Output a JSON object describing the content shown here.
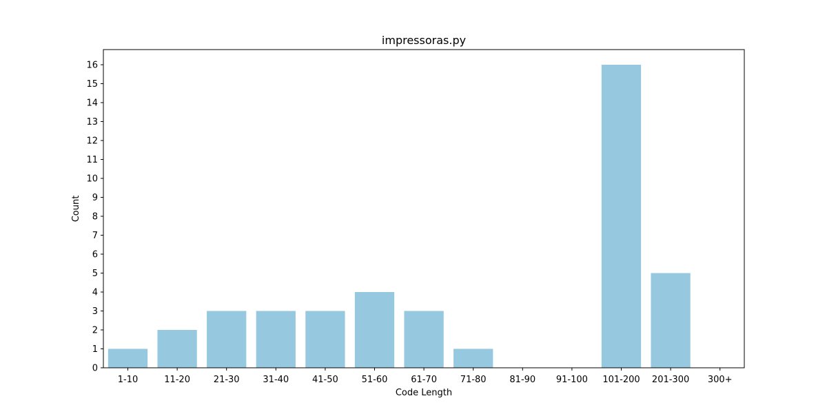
{
  "chart_data": {
    "type": "bar",
    "title": "impressoras.py",
    "xlabel": "Code Length",
    "ylabel": "Count",
    "categories": [
      "1-10",
      "11-20",
      "21-30",
      "31-40",
      "41-50",
      "51-60",
      "61-70",
      "71-80",
      "81-90",
      "91-100",
      "101-200",
      "201-300",
      "300+"
    ],
    "values": [
      1,
      2,
      3,
      3,
      3,
      4,
      3,
      1,
      0,
      0,
      16,
      5,
      0
    ],
    "ylim": [
      0,
      16.8
    ],
    "yticks": [
      0,
      1,
      2,
      3,
      4,
      5,
      6,
      7,
      8,
      9,
      10,
      11,
      12,
      13,
      14,
      15,
      16
    ],
    "bar_color": "#96c9df",
    "grid": false,
    "legend": "none"
  }
}
